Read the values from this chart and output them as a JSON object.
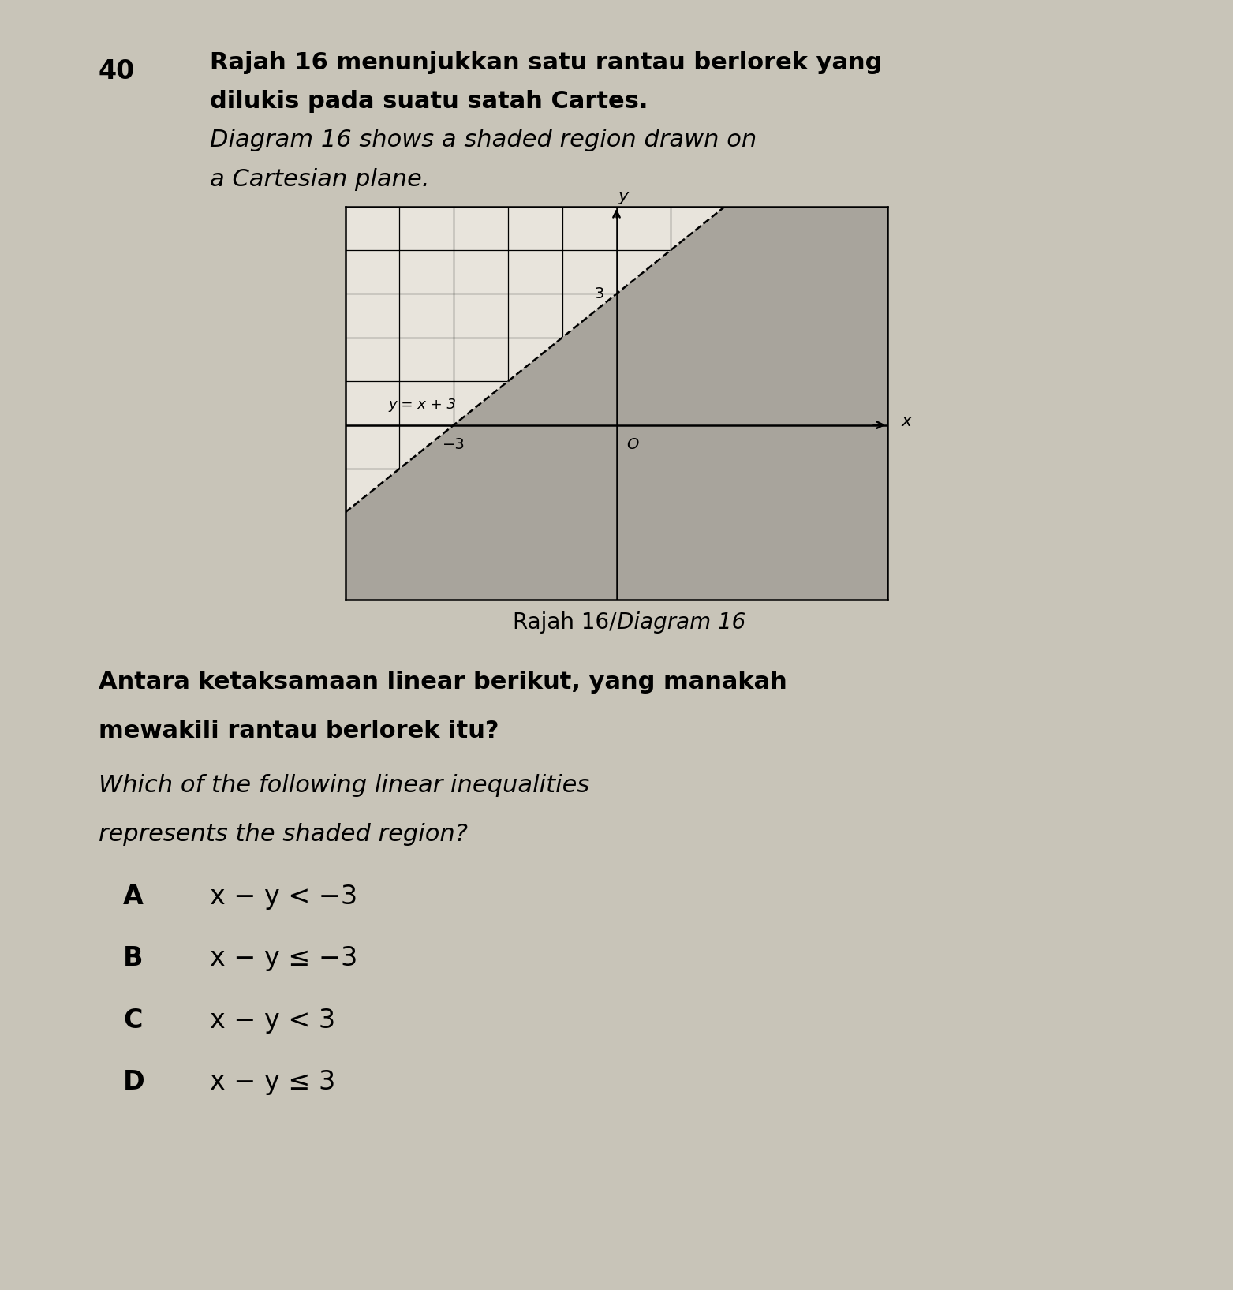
{
  "page_bg": "#c8c4b8",
  "content_bg": "#dedad2",
  "graph_bg": "#e8e4dc",
  "shade_color": "#a8a49c",
  "grid_color": "#000000",
  "line_color": "#000000",
  "text_color": "#000000",
  "question_number": "40",
  "malay_line1": "Rajah 16 menunjukkan satu rantau berlorek yang",
  "malay_line2": "dilukis pada suatu satah Cartes.",
  "english_line1": "Diagram 16 shows a shaded region drawn on",
  "english_line2": "a Cartesian plane.",
  "diagram_label_roman": "Rajah 16/",
  "diagram_label_italic": "Diagram 16",
  "malay_q1": "Antara ketaksamaan linear berikut, yang manakah",
  "malay_q2": "mewakili rantau berlorek itu?",
  "english_q1": "Which of the following linear inequalities",
  "english_q2": "represents the shaded region?",
  "opt_A_label": "A",
  "opt_A_text": "x − y < −3",
  "opt_B_label": "B",
  "opt_B_text": "x − y ≤ −3",
  "opt_C_label": "C",
  "opt_C_text": "x − y < 3",
  "opt_D_label": "D",
  "opt_D_text": "x − y ≤ 3",
  "line_equation": "y = x + 3",
  "x_min": -5,
  "x_max": 5,
  "y_min": -4,
  "y_max": 5,
  "line_intercept": 3,
  "tick_neg3": "−3",
  "tick_3": "3",
  "tick_O": "O"
}
